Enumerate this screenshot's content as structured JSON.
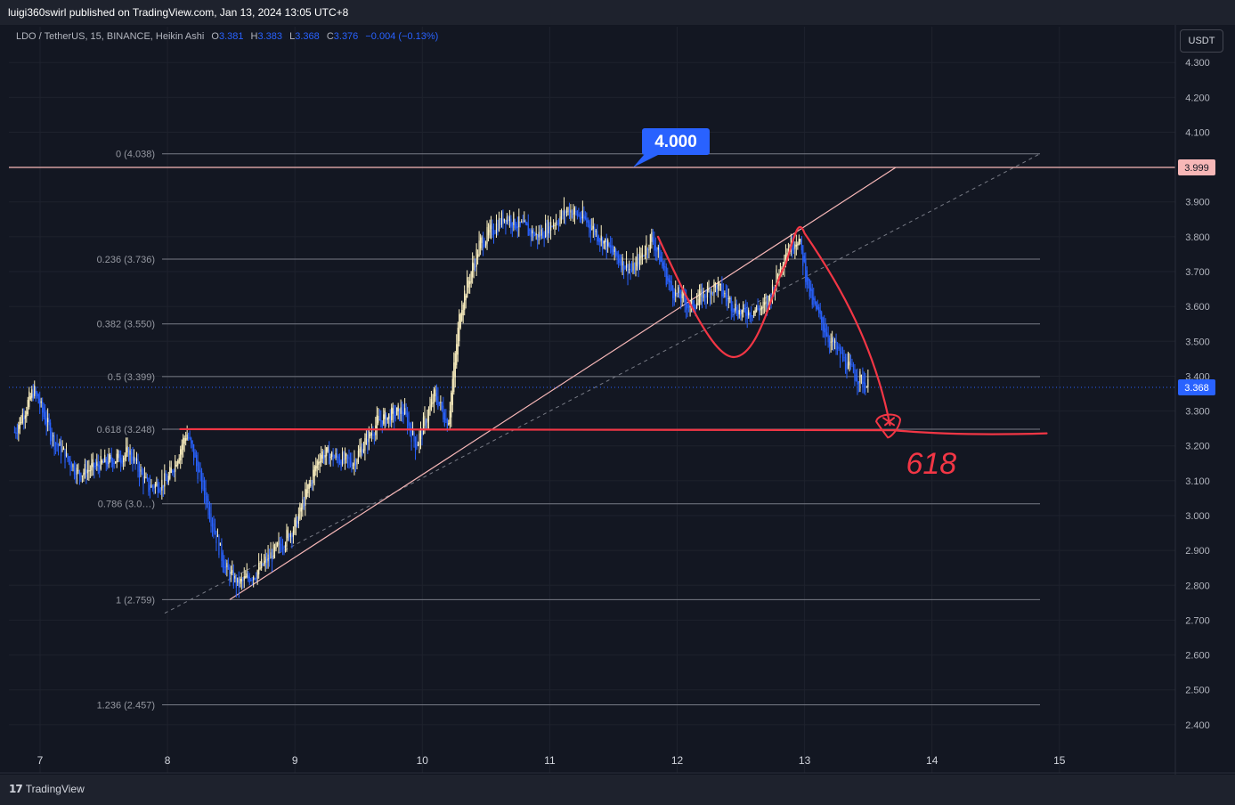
{
  "publisher_line": "luigi360swirl published on TradingView.com, Jan 13, 2024 13:05 UTC+8",
  "legend": {
    "symbol": "LDO / TetherUS, 15, BINANCE, Heikin Ashi",
    "o_label": "O",
    "o": "3.381",
    "h_label": "H",
    "h": "3.383",
    "l_label": "L",
    "l": "3.368",
    "c_label": "C",
    "c": "3.376",
    "change": "−0.004 (−0.13%)"
  },
  "currency_button": "USDT",
  "brand": "TradingView",
  "colors": {
    "background": "#131722",
    "up_candle": "#fff3c2",
    "down_candle": "#2962ff",
    "drawing_red": "#f23645",
    "resistance_line": "#f7b7b7",
    "last_price": "#2962ff"
  },
  "chart_data": {
    "type": "candlestick",
    "style": "Heikin Ashi",
    "symbol": "LDO / TetherUS",
    "interval": "15",
    "exchange": "BINANCE",
    "x_ticks": [
      "7",
      "8",
      "9",
      "10",
      "11",
      "12",
      "13",
      "14",
      "15"
    ],
    "y_ticks": [
      "4.300",
      "4.200",
      "4.100",
      "4.000",
      "3.900",
      "3.800",
      "3.700",
      "3.600",
      "3.500",
      "3.400",
      "3.300",
      "3.200",
      "3.100",
      "3.000",
      "2.900",
      "2.800",
      "2.700",
      "2.600",
      "2.500",
      "2.400"
    ],
    "ylim": [
      2.36,
      4.4
    ],
    "fib_levels": [
      {
        "ratio": "0",
        "price": 4.038,
        "label": "0 (4.038)"
      },
      {
        "ratio": "0.236",
        "price": 3.736,
        "label": "0.236 (3.736)"
      },
      {
        "ratio": "0.382",
        "price": 3.55,
        "label": "0.382 (3.550)"
      },
      {
        "ratio": "0.5",
        "price": 3.399,
        "label": "0.5 (3.399)"
      },
      {
        "ratio": "0.618",
        "price": 3.248,
        "label": "0.618 (3.248)"
      },
      {
        "ratio": "0.786",
        "price": 3.034,
        "label": "0.786 (3.0…)"
      },
      {
        "ratio": "1",
        "price": 2.759,
        "label": "1 (2.759)"
      },
      {
        "ratio": "1.236",
        "price": 2.457,
        "label": "1.236 (2.457)"
      }
    ],
    "resistance_level": {
      "price": 3.999,
      "label": "3.999"
    },
    "last_price": {
      "price": 3.368,
      "label": "3.368"
    },
    "callout": {
      "text": "4.000",
      "price": 4.0
    },
    "annotation_text": "618",
    "price_path": [
      [
        6.8,
        3.24
      ],
      [
        6.95,
        3.36
      ],
      [
        7.1,
        3.22
      ],
      [
        7.3,
        3.12
      ],
      [
        7.5,
        3.15
      ],
      [
        7.7,
        3.18
      ],
      [
        7.85,
        3.08
      ],
      [
        8.0,
        3.1
      ],
      [
        8.15,
        3.24
      ],
      [
        8.3,
        3.05
      ],
      [
        8.45,
        2.85
      ],
      [
        8.55,
        2.8
      ],
      [
        8.7,
        2.84
      ],
      [
        8.85,
        2.9
      ],
      [
        9.0,
        2.97
      ],
      [
        9.2,
        3.18
      ],
      [
        9.45,
        3.15
      ],
      [
        9.65,
        3.27
      ],
      [
        9.85,
        3.3
      ],
      [
        9.95,
        3.2
      ],
      [
        10.1,
        3.35
      ],
      [
        10.2,
        3.26
      ],
      [
        10.3,
        3.6
      ],
      [
        10.45,
        3.78
      ],
      [
        10.65,
        3.86
      ],
      [
        10.9,
        3.8
      ],
      [
        11.15,
        3.88
      ],
      [
        11.3,
        3.84
      ],
      [
        11.5,
        3.75
      ],
      [
        11.65,
        3.7
      ],
      [
        11.8,
        3.8
      ],
      [
        11.95,
        3.65
      ],
      [
        12.1,
        3.6
      ],
      [
        12.3,
        3.66
      ],
      [
        12.5,
        3.58
      ],
      [
        12.7,
        3.6
      ],
      [
        12.85,
        3.76
      ],
      [
        12.95,
        3.8
      ],
      [
        13.05,
        3.62
      ],
      [
        13.2,
        3.5
      ],
      [
        13.35,
        3.42
      ],
      [
        13.5,
        3.37
      ]
    ]
  }
}
